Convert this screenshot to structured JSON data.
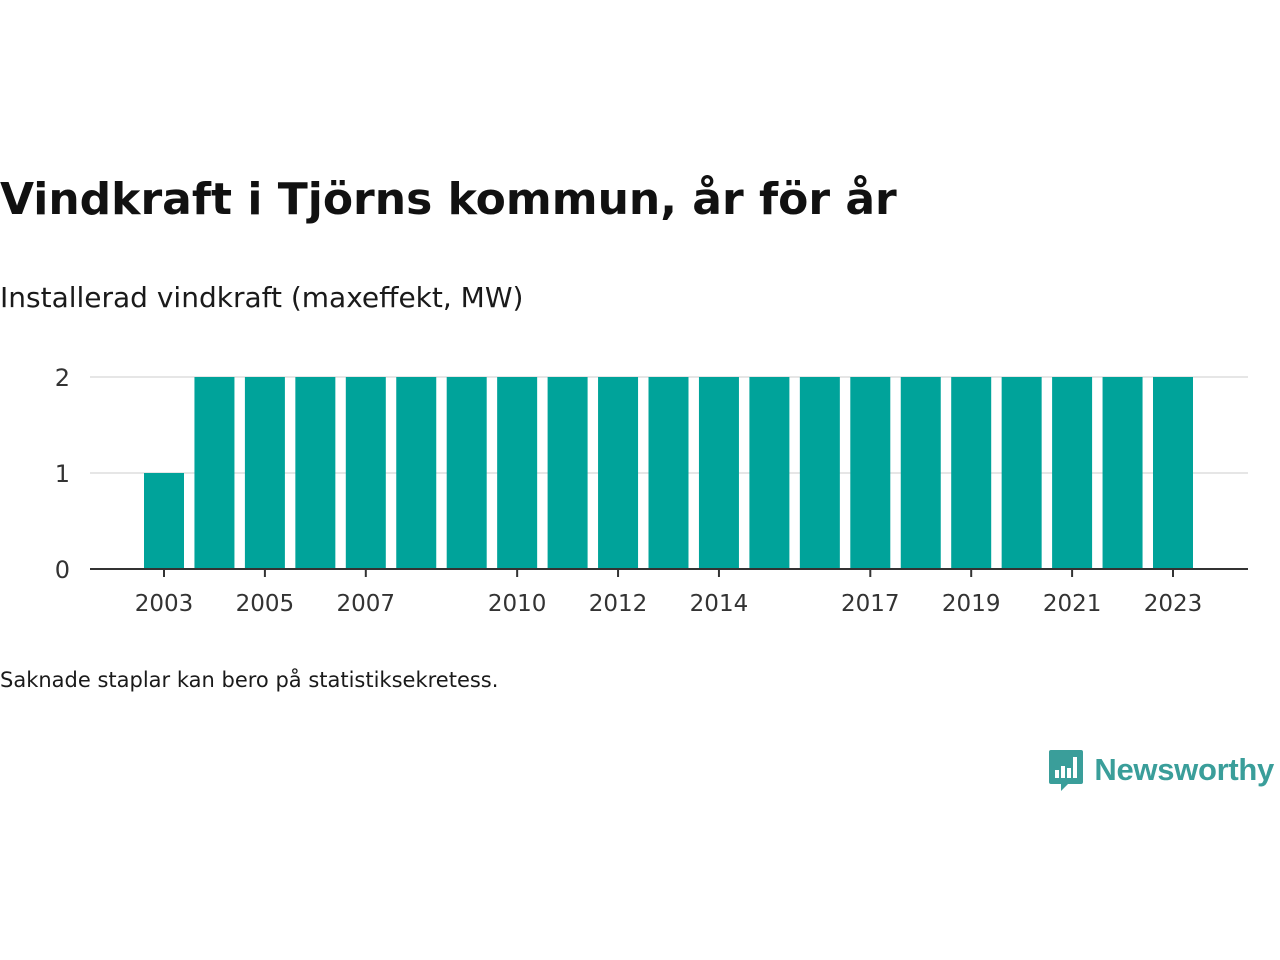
{
  "title": "Vindkraft i Tjörns kommun, år för år",
  "subtitle": "Installerad vindkraft (maxeffekt, MW)",
  "footnote": "Saknade staplar kan bero på statistiksekretess.",
  "brand": {
    "name": "Newsworthy",
    "color": "#3a9e9a",
    "icon": "newsworthy-logo-icon"
  },
  "chart_data": {
    "type": "bar",
    "title": "",
    "xlabel": "",
    "ylabel": "",
    "categories": [
      "2003",
      "2004",
      "2005",
      "2006",
      "2007",
      "2008",
      "2009",
      "2010",
      "2011",
      "2012",
      "2013",
      "2014",
      "2015",
      "2016",
      "2017",
      "2018",
      "2019",
      "2020",
      "2021",
      "2022",
      "2023"
    ],
    "values": [
      1,
      2,
      2,
      2,
      2,
      2,
      2,
      2,
      2,
      2,
      2,
      2,
      2,
      2,
      2,
      2,
      2,
      2,
      2,
      2,
      2
    ],
    "x_tick_labels": [
      "2003",
      "2005",
      "2007",
      "2010",
      "2012",
      "2014",
      "2017",
      "2019",
      "2021",
      "2023"
    ],
    "y_ticks": [
      0,
      1,
      2
    ],
    "ylim": [
      0,
      2
    ],
    "bar_color": "#00a39a",
    "grid": true,
    "legend": "none"
  }
}
